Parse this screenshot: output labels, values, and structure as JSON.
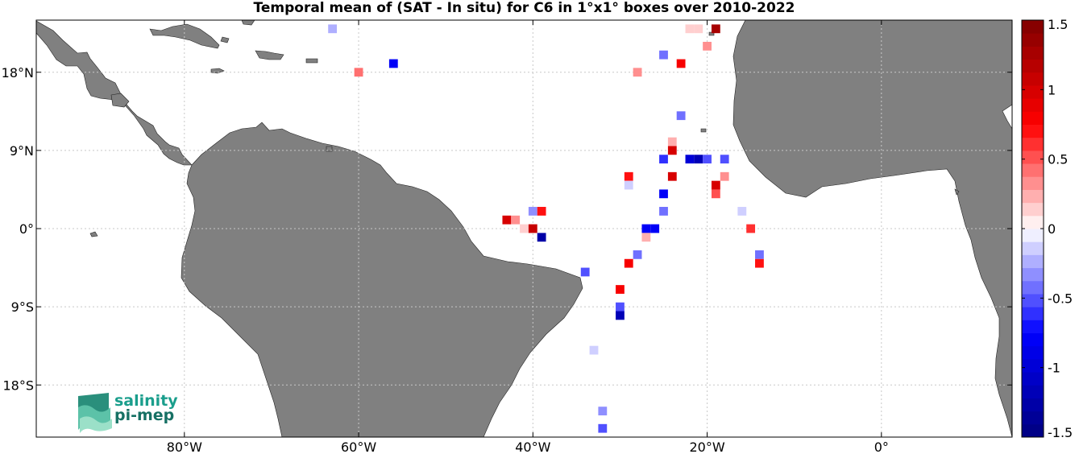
{
  "title": "Temporal mean of (SAT - In situ) for C6 in 1°x1° boxes over 2010-2022",
  "map": {
    "lon_range": [
      -97,
      15
    ],
    "lat_range": [
      -24,
      24
    ],
    "lon_ticks": [
      {
        "value": -80,
        "label": "80°W"
      },
      {
        "value": -60,
        "label": "60°W"
      },
      {
        "value": -40,
        "label": "40°W"
      },
      {
        "value": -20,
        "label": "20°W"
      },
      {
        "value": 0,
        "label": "0°"
      }
    ],
    "lat_ticks": [
      {
        "value": 18,
        "label": "18°N"
      },
      {
        "value": 9,
        "label": "9°N"
      },
      {
        "value": 0,
        "label": "0°"
      },
      {
        "value": -9,
        "label": "9°S"
      },
      {
        "value": -18,
        "label": "18°S"
      }
    ],
    "grid": true,
    "land_color": "#808080",
    "ocean_color": "#ffffff"
  },
  "colorbar": {
    "range": [
      -1.5,
      1.5
    ],
    "levels": 32,
    "ticks": [
      {
        "value": 1.5,
        "label": "1.5"
      },
      {
        "value": 1,
        "label": "1"
      },
      {
        "value": 0.5,
        "label": "0.5"
      },
      {
        "value": 0,
        "label": "0"
      },
      {
        "value": -0.5,
        "label": "-0.5"
      },
      {
        "value": -1,
        "label": "-1"
      },
      {
        "value": -1.5,
        "label": "-1.5"
      }
    ],
    "colormap": [
      "#00007f",
      "#0000ff",
      "#ffffff",
      "#ff0000",
      "#7f0000"
    ]
  },
  "logo": {
    "line1": "salinity",
    "line2": "pi-mep"
  },
  "chart_data": {
    "type": "heatmap",
    "units": "temporal mean (SAT - In situ)",
    "cells": [
      {
        "lon": -63,
        "lat": 23,
        "value": -0.2
      },
      {
        "lon": -21,
        "lat": 23,
        "value": 0.1
      },
      {
        "lon": -22,
        "lat": 23,
        "value": 0.1
      },
      {
        "lon": -19,
        "lat": 23,
        "value": 1.3
      },
      {
        "lon": -20,
        "lat": 21,
        "value": 0.3
      },
      {
        "lon": -25,
        "lat": 20,
        "value": -0.4
      },
      {
        "lon": -23,
        "lat": 19,
        "value": 0.8
      },
      {
        "lon": -56,
        "lat": 19,
        "value": -0.8
      },
      {
        "lon": -60,
        "lat": 18,
        "value": 0.4
      },
      {
        "lon": -28,
        "lat": 18,
        "value": 0.3
      },
      {
        "lon": -23,
        "lat": 13,
        "value": -0.4
      },
      {
        "lon": -24,
        "lat": 10,
        "value": 0.2
      },
      {
        "lon": -24,
        "lat": 9,
        "value": 1.0
      },
      {
        "lon": -25,
        "lat": 8,
        "value": -0.6
      },
      {
        "lon": -22,
        "lat": 8,
        "value": -1.0
      },
      {
        "lon": -21,
        "lat": 8,
        "value": -1.2
      },
      {
        "lon": -20,
        "lat": 8,
        "value": -0.5
      },
      {
        "lon": -18,
        "lat": 8,
        "value": -0.5
      },
      {
        "lon": -29,
        "lat": 6,
        "value": 0.7
      },
      {
        "lon": -24,
        "lat": 6,
        "value": 1.0
      },
      {
        "lon": -18,
        "lat": 6,
        "value": 0.3
      },
      {
        "lon": -29,
        "lat": 5,
        "value": -0.1
      },
      {
        "lon": -19,
        "lat": 5,
        "value": 1.0
      },
      {
        "lon": -19,
        "lat": 4,
        "value": 0.5
      },
      {
        "lon": -25,
        "lat": 4,
        "value": -0.8
      },
      {
        "lon": -40,
        "lat": 2,
        "value": -0.3
      },
      {
        "lon": -39,
        "lat": 2,
        "value": 0.7
      },
      {
        "lon": -25,
        "lat": 2,
        "value": -0.4
      },
      {
        "lon": -16,
        "lat": 2,
        "value": -0.1
      },
      {
        "lon": -43,
        "lat": 1,
        "value": 1.0
      },
      {
        "lon": -42,
        "lat": 1,
        "value": 0.3
      },
      {
        "lon": -41,
        "lat": 0,
        "value": 0.1
      },
      {
        "lon": -40,
        "lat": 0,
        "value": 1.1
      },
      {
        "lon": -27,
        "lat": 0,
        "value": -0.8
      },
      {
        "lon": -26,
        "lat": 0,
        "value": -0.8
      },
      {
        "lon": -15,
        "lat": 0,
        "value": 0.6
      },
      {
        "lon": -39,
        "lat": -1,
        "value": -1.3
      },
      {
        "lon": -27,
        "lat": -1,
        "value": 0.2
      },
      {
        "lon": -28,
        "lat": -3,
        "value": -0.4
      },
      {
        "lon": -14,
        "lat": -3,
        "value": -0.4
      },
      {
        "lon": -29,
        "lat": -4,
        "value": 0.8
      },
      {
        "lon": -14,
        "lat": -4,
        "value": 0.7
      },
      {
        "lon": -34,
        "lat": -5,
        "value": -0.5
      },
      {
        "lon": -30,
        "lat": -7,
        "value": 0.8
      },
      {
        "lon": -30,
        "lat": -9,
        "value": -0.5
      },
      {
        "lon": -30,
        "lat": -10,
        "value": -1.2
      },
      {
        "lon": -33,
        "lat": -14,
        "value": -0.1
      },
      {
        "lon": -32,
        "lat": -21,
        "value": -0.3
      },
      {
        "lon": -32,
        "lat": -23,
        "value": -0.5
      }
    ]
  }
}
